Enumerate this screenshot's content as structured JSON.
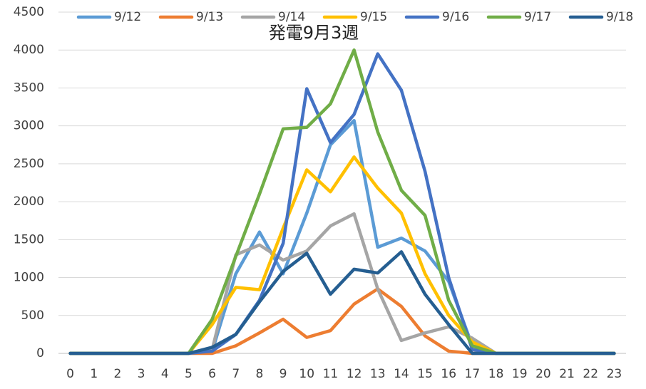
{
  "chart_data": {
    "type": "line",
    "title": "発電9月3週",
    "categories": [
      "0",
      "1",
      "2",
      "3",
      "4",
      "5",
      "6",
      "7",
      "8",
      "9",
      "10",
      "11",
      "12",
      "13",
      "14",
      "15",
      "16",
      "17",
      "18",
      "19",
      "20",
      "21",
      "22",
      "23"
    ],
    "ylim": [
      0,
      4500
    ],
    "yticks": [
      0,
      500,
      1000,
      1500,
      2000,
      2500,
      3000,
      3500,
      4000,
      4500
    ],
    "grid": true,
    "legend": "top",
    "series": [
      {
        "name": "9/12",
        "color": "#5b9bd5",
        "values": [
          0,
          0,
          0,
          0,
          0,
          0,
          30,
          1050,
          1600,
          1050,
          1850,
          2750,
          3070,
          1400,
          1520,
          1350,
          950,
          100,
          0,
          0,
          0,
          0,
          0,
          0
        ]
      },
      {
        "name": "9/13",
        "color": "#ed7d31",
        "values": [
          0,
          0,
          0,
          0,
          0,
          0,
          0,
          100,
          270,
          450,
          210,
          300,
          650,
          850,
          620,
          230,
          30,
          0,
          0,
          0,
          0,
          0,
          0,
          0
        ]
      },
      {
        "name": "9/14",
        "color": "#a5a5a5",
        "values": [
          0,
          0,
          0,
          0,
          0,
          0,
          50,
          1300,
          1430,
          1230,
          1350,
          1680,
          1840,
          850,
          170,
          270,
          350,
          200,
          0,
          0,
          0,
          0,
          0,
          0
        ]
      },
      {
        "name": "9/15",
        "color": "#ffc000",
        "values": [
          0,
          0,
          0,
          0,
          0,
          0,
          380,
          870,
          840,
          1650,
          2420,
          2130,
          2590,
          2180,
          1850,
          1050,
          500,
          150,
          0,
          0,
          0,
          0,
          0,
          0
        ]
      },
      {
        "name": "9/16",
        "color": "#4472c4",
        "values": [
          0,
          0,
          0,
          0,
          0,
          0,
          30,
          250,
          700,
          1450,
          3490,
          2780,
          3150,
          3950,
          3470,
          2400,
          1000,
          50,
          0,
          0,
          0,
          0,
          0,
          0
        ]
      },
      {
        "name": "9/17",
        "color": "#70ad47",
        "values": [
          0,
          0,
          0,
          0,
          0,
          0,
          450,
          1280,
          2100,
          2960,
          2980,
          3290,
          4000,
          2920,
          2150,
          1820,
          700,
          100,
          0,
          0,
          0,
          0,
          0,
          0
        ]
      },
      {
        "name": "9/18",
        "color": "#255e91",
        "values": [
          0,
          0,
          0,
          0,
          0,
          0,
          80,
          250,
          680,
          1080,
          1320,
          780,
          1110,
          1060,
          1340,
          780,
          380,
          0,
          0,
          0,
          0,
          0,
          0,
          0
        ]
      }
    ]
  }
}
